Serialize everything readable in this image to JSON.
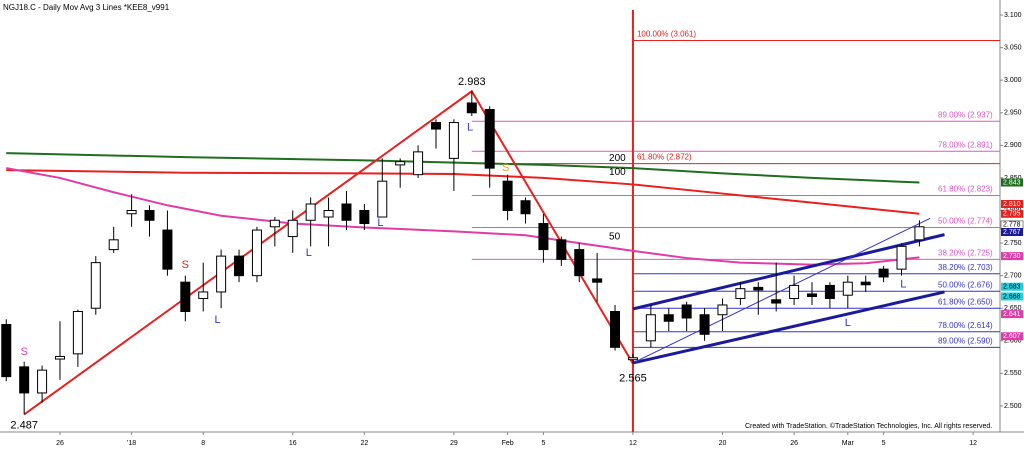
{
  "chart_data": {
    "type": "candlestick",
    "title": "NGJ18.C - Daily  Mov Avg 3 Lines  *KEE8_v991",
    "footer": "Created with TradeStation. ©TradeStation Technologies, Inc. All rights reserved.",
    "x": [
      0,
      1,
      2,
      3,
      4,
      5,
      6,
      7,
      8,
      9,
      10,
      11,
      12,
      13,
      14,
      15,
      16,
      17,
      18,
      19,
      20,
      21,
      22,
      23,
      24,
      25,
      26,
      27,
      28,
      29,
      30,
      31,
      32,
      33,
      34,
      35,
      36,
      37,
      38,
      39,
      40,
      41,
      42,
      43,
      44,
      45,
      46,
      47,
      48,
      49,
      50,
      51
    ],
    "open": [
      2.625,
      2.56,
      2.52,
      2.572,
      2.58,
      2.65,
      2.74,
      2.795,
      2.8,
      2.77,
      2.69,
      2.665,
      2.675,
      2.73,
      2.7,
      2.775,
      2.76,
      2.785,
      2.79,
      2.81,
      2.8,
      2.79,
      2.87,
      2.855,
      2.935,
      2.88,
      2.965,
      2.955,
      2.845,
      2.815,
      2.78,
      2.755,
      2.74,
      2.695,
      2.645,
      2.571,
      2.6,
      2.64,
      2.655,
      2.64,
      2.64,
      2.665,
      2.682,
      2.663,
      2.665,
      2.672,
      2.685,
      2.67,
      2.69,
      2.71,
      2.71,
      2.755
    ],
    "high": [
      2.633,
      2.568,
      2.562,
      2.63,
      2.648,
      2.73,
      2.775,
      2.825,
      2.808,
      2.8,
      2.7,
      2.72,
      2.74,
      2.74,
      2.775,
      2.79,
      2.8,
      2.82,
      2.82,
      2.83,
      2.81,
      2.88,
      2.88,
      2.9,
      2.94,
      2.94,
      2.983,
      2.96,
      2.855,
      2.82,
      2.795,
      2.76,
      2.75,
      2.735,
      2.655,
      2.58,
      2.655,
      2.65,
      2.66,
      2.65,
      2.665,
      2.69,
      2.69,
      2.72,
      2.7,
      2.69,
      2.69,
      2.7,
      2.7,
      2.715,
      2.75,
      2.785
    ],
    "low": [
      2.538,
      2.487,
      2.505,
      2.54,
      2.56,
      2.64,
      2.735,
      2.775,
      2.76,
      2.7,
      2.63,
      2.645,
      2.65,
      2.69,
      2.69,
      2.745,
      2.735,
      2.745,
      2.745,
      2.77,
      2.77,
      2.79,
      2.835,
      2.85,
      2.895,
      2.83,
      2.945,
      2.835,
      2.785,
      2.78,
      2.72,
      2.715,
      2.69,
      2.66,
      2.585,
      2.565,
      2.59,
      2.615,
      2.615,
      2.6,
      2.615,
      2.655,
      2.64,
      2.645,
      2.655,
      2.655,
      2.65,
      2.65,
      2.675,
      2.69,
      2.7,
      2.745
    ],
    "close": [
      2.545,
      2.52,
      2.555,
      2.576,
      2.645,
      2.72,
      2.755,
      2.8,
      2.785,
      2.71,
      2.645,
      2.675,
      2.73,
      2.7,
      2.77,
      2.785,
      2.785,
      2.81,
      2.8,
      2.785,
      2.78,
      2.845,
      2.875,
      2.89,
      2.925,
      2.935,
      2.95,
      2.865,
      2.8,
      2.795,
      2.74,
      2.725,
      2.7,
      2.69,
      2.59,
      2.574,
      2.64,
      2.63,
      2.635,
      2.61,
      2.655,
      2.68,
      2.678,
      2.658,
      2.685,
      2.668,
      2.665,
      2.69,
      2.686,
      2.698,
      2.745,
      2.775
    ],
    "xlim": [
      -0.35,
      55.5
    ],
    "xticks": [
      {
        "value": 3,
        "label": "26"
      },
      {
        "value": 7,
        "label": "'18"
      },
      {
        "value": 11,
        "label": "8"
      },
      {
        "value": 16,
        "label": "16"
      },
      {
        "value": 20,
        "label": "22"
      },
      {
        "value": 25,
        "label": "29"
      },
      {
        "value": 28,
        "label": "Feb"
      },
      {
        "value": 30,
        "label": "5"
      },
      {
        "value": 35,
        "label": "12"
      },
      {
        "value": 40,
        "label": "20"
      },
      {
        "value": 44,
        "label": "26"
      },
      {
        "value": 47,
        "label": "Mar"
      },
      {
        "value": 49,
        "label": "5"
      },
      {
        "value": 54,
        "label": "12"
      }
    ],
    "ylim": [
      2.48,
      3.12
    ],
    "yticks": [
      {
        "value": 2.5,
        "label": "2.500"
      },
      {
        "value": 2.55,
        "label": "2.550"
      },
      {
        "value": 2.6,
        "label": "2.600"
      },
      {
        "value": 2.65,
        "label": "2.650"
      },
      {
        "value": 2.7,
        "label": "2.700"
      },
      {
        "value": 2.75,
        "label": "2.750"
      },
      {
        "value": 2.8,
        "label": "2.800"
      },
      {
        "value": 2.85,
        "label": "2.850"
      },
      {
        "value": 2.9,
        "label": "2.900"
      },
      {
        "value": 2.95,
        "label": "2.950"
      },
      {
        "value": 3.0,
        "label": "3.000"
      },
      {
        "value": 3.05,
        "label": "3.050"
      },
      {
        "value": 3.1,
        "label": "3.100"
      }
    ],
    "moving_averages": [
      {
        "name": "200",
        "color": "#1f6e1f",
        "x": [
          0,
          10,
          20,
          30,
          35,
          40,
          45,
          51
        ],
        "values": [
          2.888,
          2.882,
          2.877,
          2.87,
          2.865,
          2.857,
          2.85,
          2.843
        ]
      },
      {
        "name": "100",
        "color": "#e8201e",
        "x": [
          0,
          10,
          20,
          25,
          30,
          35,
          40,
          45,
          51
        ],
        "values": [
          2.862,
          2.858,
          2.857,
          2.856,
          2.85,
          2.84,
          2.826,
          2.812,
          2.795
        ]
      },
      {
        "name": "50",
        "color": "#e03ca8",
        "x": [
          0,
          3,
          6,
          9,
          12,
          16,
          20,
          25,
          29,
          32,
          35,
          38,
          41,
          45,
          48,
          51
        ],
        "values": [
          2.865,
          2.85,
          2.828,
          2.808,
          2.792,
          2.78,
          2.774,
          2.768,
          2.762,
          2.75,
          2.738,
          2.727,
          2.72,
          2.717,
          2.719,
          2.728
        ]
      }
    ],
    "fib_levels": [
      {
        "label": "100.00% (3.061)",
        "value": 3.061,
        "color": "#e8201e",
        "from": 35
      },
      {
        "label": "89.00% (2.937)",
        "value": 2.937,
        "color": "#e055c8",
        "from": 26
      },
      {
        "label": "78.00% (2.891)",
        "value": 2.891,
        "color": "#e055c8",
        "from": 26
      },
      {
        "label": "61.80% (2.872)",
        "value": 2.872,
        "color": "#e8201e",
        "from": 26
      },
      {
        "label": "61.80% (2.823)",
        "value": 2.823,
        "color": "#e055c8",
        "from": 26
      },
      {
        "label": "50.00% (2.774)",
        "value": 2.774,
        "color": "#e055c8",
        "from": 26
      },
      {
        "label": "38.20% (2.725)",
        "value": 2.725,
        "color": "#e055c8",
        "from": 26
      },
      {
        "label": "38.20% (2.703)",
        "value": 2.703,
        "color": "#3434d0",
        "from": 35
      },
      {
        "label": "50.00% (2.676)",
        "value": 2.676,
        "color": "#3434d0",
        "from": 35
      },
      {
        "label": "61.80% (2.650)",
        "value": 2.65,
        "color": "#3434d0",
        "from": 35
      },
      {
        "label": "78.00% (2.614)",
        "value": 2.614,
        "color": "#3434d0",
        "from": 35
      },
      {
        "label": "89.00% (2.590)",
        "value": 2.59,
        "color": "#3434d0",
        "from": 35
      }
    ],
    "vline": 35,
    "trendlines": [
      {
        "color": "#e8201e",
        "width": 2,
        "x": [
          1,
          26,
          35
        ],
        "y": [
          2.487,
          2.983,
          2.565
        ]
      },
      {
        "color": "#1a1a9a",
        "width": 3,
        "x": [
          35,
          52.4
        ],
        "y": [
          2.649,
          2.763
        ]
      },
      {
        "color": "#1a1a9a",
        "width": 3,
        "x": [
          35,
          52.4
        ],
        "y": [
          2.566,
          2.675
        ]
      },
      {
        "color": "#3434d0",
        "width": 1,
        "x": [
          35,
          51.6
        ],
        "y": [
          2.566,
          2.788
        ]
      }
    ],
    "annotations": [
      {
        "text": "2.983",
        "x": 26,
        "y": 2.997,
        "color": "#000000"
      },
      {
        "text": "2.565",
        "x": 35,
        "y": 2.542,
        "color": "#000000"
      },
      {
        "text": "2.487",
        "x": 1,
        "y": 2.47,
        "color": "#000000"
      },
      {
        "text": "S",
        "x": 1,
        "y": 2.583,
        "color": "#e040c0"
      },
      {
        "text": "S",
        "x": 10,
        "y": 2.716,
        "color": "#e8201e"
      },
      {
        "text": "L",
        "x": 11.8,
        "y": 2.632,
        "color": "#3434d0"
      },
      {
        "text": "L",
        "x": 16.9,
        "y": 2.735,
        "color": "#3434d0"
      },
      {
        "text": "L",
        "x": 20.9,
        "y": 2.781,
        "color": "#3434d0"
      },
      {
        "text": "L",
        "x": 25.9,
        "y": 2.927,
        "color": "#3434d0"
      },
      {
        "text": "S",
        "x": 27.9,
        "y": 2.865,
        "color": "#e8a020"
      },
      {
        "text": "L",
        "x": 47,
        "y": 2.627,
        "color": "#3434d0"
      },
      {
        "text": "L",
        "x": 50.1,
        "y": 2.686,
        "color": "#3434d0"
      }
    ],
    "price_tags": [
      {
        "value": 2.843,
        "label": "2.843",
        "color": "#1f6e1f"
      },
      {
        "value": 2.81,
        "label": "2.810",
        "color": "#e8201e"
      },
      {
        "value": 2.795,
        "label": "2.795",
        "color": "#e8201e"
      },
      {
        "value": 2.778,
        "label": "2.778",
        "color": "#ffffff"
      },
      {
        "value": 2.767,
        "label": "2.767",
        "color": "#1a1a9a"
      },
      {
        "value": 2.73,
        "label": "2.730",
        "color": "#e03ca8"
      },
      {
        "value": 2.683,
        "label": "2.683",
        "color": "#22d0e0"
      },
      {
        "value": 2.668,
        "label": "2.668",
        "color": "#22d0e0"
      },
      {
        "value": 2.641,
        "label": "2.641",
        "color": "#e03ca8"
      },
      {
        "value": 2.607,
        "label": "2.607",
        "color": "#e03ca8"
      }
    ]
  }
}
